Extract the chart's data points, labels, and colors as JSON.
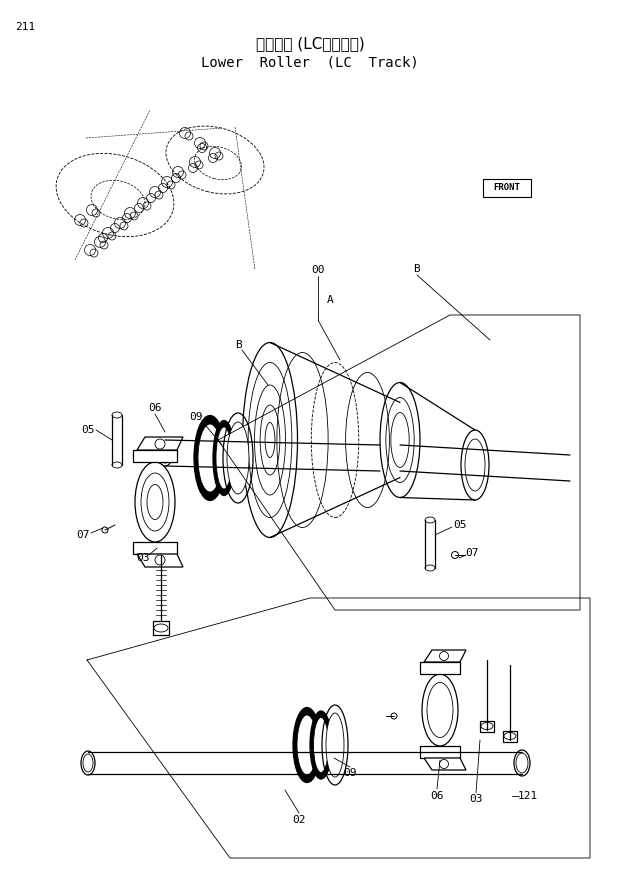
{
  "title_jp": "下ローラ (LCトラック)",
  "title_en": "Lower  Roller  (LC Track)",
  "page_number": "211",
  "bg_color": "#ffffff",
  "line_color": "#000000",
  "lw_thin": 0.6,
  "lw_med": 0.9,
  "lw_thick": 1.5
}
